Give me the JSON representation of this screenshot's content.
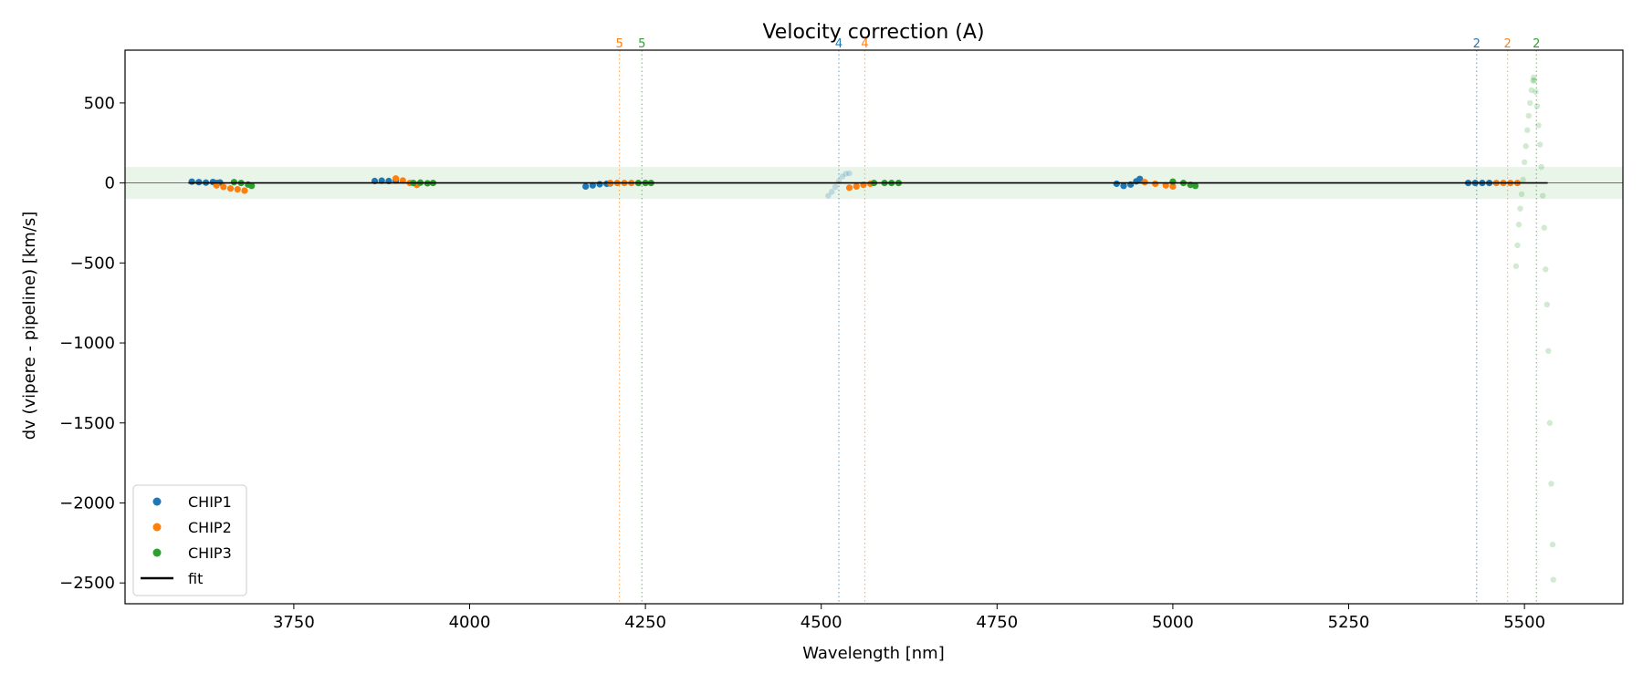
{
  "chart_data": {
    "type": "scatter",
    "title": "Velocity correction (A)",
    "xlabel": "Wavelength [nm]",
    "ylabel": "dv (vipere - pipeline) [km/s]",
    "xlim": [
      3510,
      5640
    ],
    "ylim": [
      -2630,
      830
    ],
    "xticks": [
      3750,
      4000,
      4250,
      4500,
      4750,
      5000,
      5250,
      5500
    ],
    "yticks": [
      500,
      0,
      -500,
      -1000,
      -1500,
      -2000,
      -2500
    ],
    "ytick_labels": [
      "500",
      "0",
      "−500",
      "−1000",
      "−1500",
      "−2000",
      "−2500"
    ],
    "band": {
      "y_low": -100,
      "y_high": 100,
      "color": "#2ca02c"
    },
    "colors": {
      "CHIP1": "#1f77b4",
      "CHIP2": "#ff7f0e",
      "CHIP3": "#2ca02c",
      "fit": "#000000"
    },
    "legend": {
      "position": "lower-left",
      "entries": [
        {
          "label": "CHIP1",
          "color": "#1f77b4",
          "kind": "marker"
        },
        {
          "label": "CHIP2",
          "color": "#ff7f0e",
          "kind": "marker"
        },
        {
          "label": "CHIP3",
          "color": "#2ca02c",
          "kind": "marker"
        },
        {
          "label": "fit",
          "color": "#000000",
          "kind": "line"
        }
      ]
    },
    "fit_line": {
      "x_start": 3600,
      "x_end": 5533,
      "y": 0
    },
    "order_markers": [
      {
        "x": 4213,
        "label": "5",
        "chip": "CHIP2"
      },
      {
        "x": 4245,
        "label": "5",
        "chip": "CHIP3"
      },
      {
        "x": 4525,
        "label": "4",
        "chip": "CHIP1"
      },
      {
        "x": 4562,
        "label": "4",
        "chip": "CHIP2"
      },
      {
        "x": 5432,
        "label": "2",
        "chip": "CHIP1"
      },
      {
        "x": 5476,
        "label": "2",
        "chip": "CHIP2"
      },
      {
        "x": 5517,
        "label": "2",
        "chip": "CHIP3"
      }
    ],
    "series": [
      {
        "name": "CHIP1",
        "faded": false,
        "points": [
          [
            3605,
            8
          ],
          [
            3615,
            5
          ],
          [
            3625,
            2
          ],
          [
            3635,
            6
          ],
          [
            3640,
            0
          ],
          [
            3645,
            3
          ]
        ]
      },
      {
        "name": "CHIP2",
        "faded": false,
        "points": [
          [
            3640,
            -15
          ],
          [
            3650,
            -25
          ],
          [
            3660,
            -35
          ],
          [
            3670,
            -40
          ],
          [
            3680,
            -48
          ]
        ]
      },
      {
        "name": "CHIP3",
        "faded": false,
        "points": [
          [
            3665,
            5
          ],
          [
            3675,
            0
          ],
          [
            3685,
            -10
          ],
          [
            3690,
            -18
          ]
        ]
      },
      {
        "name": "CHIP1",
        "faded": false,
        "points": [
          [
            3865,
            12
          ],
          [
            3875,
            14
          ],
          [
            3885,
            12
          ],
          [
            3895,
            15
          ]
        ]
      },
      {
        "name": "CHIP2",
        "faded": false,
        "points": [
          [
            3895,
            28
          ],
          [
            3905,
            15
          ],
          [
            3915,
            0
          ],
          [
            3925,
            -12
          ]
        ]
      },
      {
        "name": "CHIP3",
        "faded": false,
        "points": [
          [
            3920,
            0
          ],
          [
            3930,
            2
          ],
          [
            3940,
            -2
          ],
          [
            3948,
            0
          ]
        ]
      },
      {
        "name": "CHIP1",
        "faded": false,
        "points": [
          [
            4165,
            -22
          ],
          [
            4175,
            -15
          ],
          [
            4185,
            -8
          ],
          [
            4195,
            -5
          ],
          [
            4200,
            -3
          ]
        ]
      },
      {
        "name": "CHIP2",
        "faded": false,
        "points": [
          [
            4200,
            0
          ],
          [
            4210,
            0
          ],
          [
            4220,
            0
          ],
          [
            4230,
            0
          ]
        ]
      },
      {
        "name": "CHIP3",
        "faded": false,
        "points": [
          [
            4240,
            0
          ],
          [
            4250,
            0
          ],
          [
            4258,
            0
          ]
        ]
      },
      {
        "name": "CHIP1",
        "faded": true,
        "points": [
          [
            4510,
            -80
          ],
          [
            4515,
            -55
          ],
          [
            4520,
            -25
          ],
          [
            4525,
            10
          ],
          [
            4530,
            40
          ],
          [
            4535,
            58
          ],
          [
            4540,
            60
          ]
        ]
      },
      {
        "name": "CHIP2",
        "faded": false,
        "points": [
          [
            4540,
            -30
          ],
          [
            4550,
            -22
          ],
          [
            4560,
            -12
          ],
          [
            4570,
            -5
          ]
        ]
      },
      {
        "name": "CHIP3",
        "faded": false,
        "points": [
          [
            4575,
            0
          ],
          [
            4590,
            0
          ],
          [
            4600,
            0
          ],
          [
            4610,
            0
          ]
        ]
      },
      {
        "name": "CHIP1",
        "faded": false,
        "points": [
          [
            4920,
            -5
          ],
          [
            4930,
            -18
          ],
          [
            4940,
            -10
          ],
          [
            4948,
            10
          ],
          [
            4953,
            25
          ]
        ]
      },
      {
        "name": "CHIP2",
        "faded": false,
        "points": [
          [
            4960,
            5
          ],
          [
            4975,
            -5
          ],
          [
            4990,
            -15
          ],
          [
            5000,
            -22
          ]
        ]
      },
      {
        "name": "CHIP3",
        "faded": false,
        "points": [
          [
            5000,
            8
          ],
          [
            5015,
            0
          ],
          [
            5025,
            -12
          ],
          [
            5032,
            -18
          ]
        ]
      },
      {
        "name": "CHIP1",
        "faded": false,
        "points": [
          [
            5420,
            0
          ],
          [
            5430,
            0
          ],
          [
            5440,
            0
          ],
          [
            5450,
            0
          ]
        ]
      },
      {
        "name": "CHIP2",
        "faded": false,
        "points": [
          [
            5460,
            0
          ],
          [
            5470,
            0
          ],
          [
            5480,
            0
          ],
          [
            5490,
            0
          ]
        ]
      },
      {
        "name": "CHIP3",
        "faded": true,
        "points": [
          [
            5488,
            -520
          ],
          [
            5490,
            -390
          ],
          [
            5492,
            -260
          ],
          [
            5494,
            -160
          ],
          [
            5496,
            -70
          ],
          [
            5498,
            20
          ],
          [
            5500,
            130
          ],
          [
            5502,
            230
          ],
          [
            5504,
            330
          ],
          [
            5506,
            420
          ],
          [
            5508,
            500
          ],
          [
            5510,
            580
          ],
          [
            5512,
            640
          ],
          [
            5513,
            660
          ],
          [
            5514,
            640
          ],
          [
            5516,
            570
          ],
          [
            5518,
            480
          ],
          [
            5520,
            360
          ],
          [
            5522,
            240
          ],
          [
            5524,
            100
          ],
          [
            5526,
            -80
          ],
          [
            5528,
            -280
          ],
          [
            5530,
            -540
          ],
          [
            5532,
            -760
          ],
          [
            5534,
            -1050
          ],
          [
            5536,
            -1500
          ],
          [
            5538,
            -1880
          ],
          [
            5540,
            -2260
          ],
          [
            5541,
            -2480
          ]
        ]
      }
    ]
  }
}
